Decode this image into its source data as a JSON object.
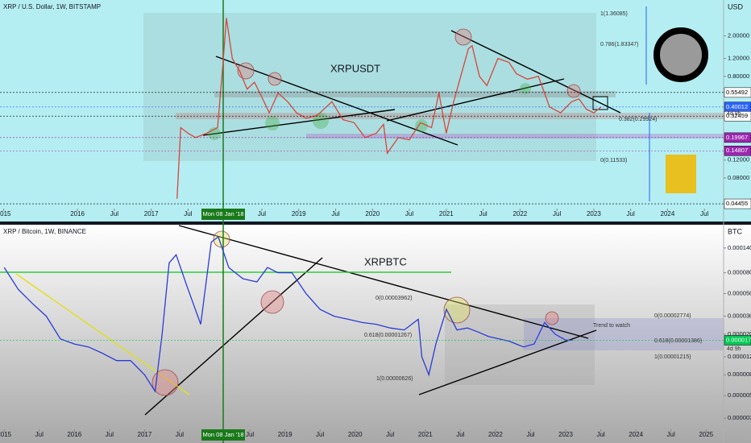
{
  "chart_data": [
    {
      "type": "line",
      "title": "XRP / U.S. Dollar, 1W, BITSTAMP",
      "symbol": "XRPUSDT",
      "unit": "USD",
      "log_scale": true,
      "color": "#d9453c",
      "x": [
        2017.35,
        2017.4,
        2017.5,
        2017.6,
        2017.75,
        2017.9,
        2017.97,
        2018.02,
        2018.1,
        2018.2,
        2018.3,
        2018.4,
        2018.5,
        2018.6,
        2018.72,
        2018.85,
        2018.97,
        2019.1,
        2019.25,
        2019.45,
        2019.6,
        2019.75,
        2019.9,
        2020.05,
        2020.15,
        2020.2,
        2020.35,
        2020.5,
        2020.65,
        2020.8,
        2020.9,
        2021.0,
        2021.1,
        2021.3,
        2021.35,
        2021.45,
        2021.55,
        2021.7,
        2021.85,
        2021.95,
        2022.1,
        2022.25,
        2022.4,
        2022.55,
        2022.7,
        2022.8,
        2022.9,
        2023.0,
        2023.1
      ],
      "values": [
        0.05,
        0.25,
        0.22,
        0.2,
        0.22,
        0.25,
        1.0,
        3.0,
        1.2,
        0.9,
        0.6,
        0.7,
        0.5,
        0.35,
        0.55,
        0.45,
        0.35,
        0.31,
        0.33,
        0.45,
        0.3,
        0.28,
        0.2,
        0.22,
        0.27,
        0.14,
        0.2,
        0.19,
        0.28,
        0.25,
        0.55,
        0.22,
        0.45,
        1.5,
        1.6,
        0.8,
        0.65,
        1.2,
        1.1,
        0.85,
        0.75,
        0.8,
        0.4,
        0.35,
        0.45,
        0.48,
        0.38,
        0.35,
        0.4
      ],
      "xlim": [
        2014.95,
        2024.76
      ],
      "xticks": [
        2015,
        2016,
        {
          "value": 2016.5,
          "label": "Jul"
        },
        2017,
        {
          "value": 2017.5,
          "label": "Jul"
        },
        {
          "value": 2018.5,
          "label": "Jul"
        },
        2019,
        {
          "value": 2019.5,
          "label": "Jul"
        },
        2020,
        {
          "value": 2020.5,
          "label": "Jul"
        },
        2021,
        {
          "value": 2021.5,
          "label": "Jul"
        },
        2022,
        {
          "value": 2022.5,
          "label": "Jul"
        },
        2023,
        {
          "value": 2023.5,
          "label": "Jul"
        },
        2024,
        {
          "value": 2024.5,
          "label": "Jul"
        }
      ],
      "ylim": [
        0.043,
        3.9
      ],
      "yticks": [
        {
          "value": 2,
          "label": "2.00000"
        },
        {
          "value": 1.2,
          "label": "1.20000"
        },
        {
          "value": 0.8,
          "label": "0.80000"
        },
        {
          "value": 0.12,
          "label": "0.12000"
        },
        {
          "value": 0.08,
          "label": "0.08000"
        }
      ],
      "price_lines": [
        {
          "value": 0.55492,
          "color": "#ffffff"
        },
        {
          "value": 0.40012,
          "color": "#2962ff"
        },
        {
          "value": 0.32459,
          "color": "#ffffff"
        },
        {
          "value": 0.19967,
          "color": "#9c27b0"
        },
        {
          "value": 0.14807,
          "color": "#9c27b0"
        },
        {
          "value": 0.04455,
          "color": "#ffffff"
        }
      ],
      "annotations": [
        "1(1.36085)",
        "0.786(1.83347)",
        "0.382(0.29924)",
        "0(0.11533)",
        "4d 9h"
      ],
      "date_marker": "Mon 08 Jan '18"
    },
    {
      "type": "line",
      "title": "XRP / Bitcoin, 1W, BINANCE",
      "symbol": "XRPBTC",
      "unit": "BTC",
      "log_scale": true,
      "color": "#2b3bd6",
      "x": [
        2015.0,
        2015.2,
        2015.4,
        2015.6,
        2015.8,
        2016.0,
        2016.2,
        2016.4,
        2016.6,
        2016.8,
        2017.0,
        2017.15,
        2017.25,
        2017.35,
        2017.45,
        2017.6,
        2017.8,
        2017.95,
        2018.05,
        2018.2,
        2018.4,
        2018.6,
        2018.75,
        2018.9,
        2019.1,
        2019.3,
        2019.5,
        2019.7,
        2019.9,
        2020.1,
        2020.3,
        2020.5,
        2020.7,
        2020.9,
        2020.95,
        2021.05,
        2021.15,
        2021.3,
        2021.45,
        2021.6,
        2021.75,
        2021.9,
        2022.05,
        2022.2,
        2022.4,
        2022.55,
        2022.7,
        2022.85,
        2023.0,
        2023.1
      ],
      "values": [
        9e-05,
        5.5e-05,
        4e-05,
        3e-05,
        1.8e-05,
        1.6e-05,
        1.5e-05,
        1.3e-05,
        1.1e-05,
        1.1e-05,
        8e-06,
        5.5e-06,
        2e-05,
        0.0001,
        0.00012,
        6e-05,
        2.5e-05,
        0.00016,
        0.00018,
        9e-05,
        7e-05,
        6.5e-05,
        9e-05,
        8e-05,
        8e-05,
        5e-05,
        3.5e-05,
        3e-05,
        2.8e-05,
        2.6e-05,
        2.5e-05,
        2.3e-05,
        2.2e-05,
        2.8e-05,
        1.2e-05,
        8e-06,
        1.6e-05,
        3.5e-05,
        2.2e-05,
        2.3e-05,
        2.1e-05,
        1.9e-05,
        1.8e-05,
        1.7e-05,
        1.5e-05,
        1.6e-05,
        2.6e-05,
        2e-05,
        1.75e-05,
        1.742e-05
      ],
      "xlim": [
        2014.94,
        2025.25
      ],
      "xticks": [
        2015,
        {
          "value": 2015.5,
          "label": "Jul"
        },
        2016,
        {
          "value": 2016.5,
          "label": "Jul"
        },
        2017,
        {
          "value": 2017.5,
          "label": "Jul"
        },
        {
          "value": 2018.5,
          "label": "Jul"
        },
        2019,
        {
          "value": 2019.5,
          "label": "Jul"
        },
        2020,
        {
          "value": 2020.5,
          "label": "Jul"
        },
        2021,
        {
          "value": 2021.5,
          "label": "Jul"
        },
        2022,
        {
          "value": 2022.5,
          "label": "Jul"
        },
        2023,
        {
          "value": 2023.5,
          "label": "Jul"
        },
        2024,
        {
          "value": 2024.5,
          "label": "Jul"
        },
        2025
      ],
      "ylim": [
        2.7e-06,
        0.000224
      ],
      "yticks": [
        {
          "value": 0.00014,
          "label": "0.00014000"
        },
        {
          "value": 8e-05,
          "label": "0.00008000"
        },
        {
          "value": 5e-05,
          "label": "0.00005000"
        },
        {
          "value": 3e-05,
          "label": "0.00003000"
        },
        {
          "value": 2e-05,
          "label": "0.00002000"
        },
        {
          "value": 1.2e-05,
          "label": "0.00001200"
        },
        {
          "value": 8e-06,
          "label": "0.00000800"
        },
        {
          "value": 5e-06,
          "label": "0.00000500"
        },
        {
          "value": 3e-06,
          "label": "0.00000300"
        }
      ],
      "price_lines": [
        {
          "value": 1.742e-05,
          "color": "#00c853"
        }
      ],
      "annotations": [
        "0(0.00003962)",
        "0.618(0.00001267)",
        "1(0.00000626)",
        "0(0.00002774)",
        "0.618(0.00001386)",
        "1(0.00001215)",
        "Trend to watch",
        "4d 9h"
      ],
      "date_marker": "Mon 08 Jan '18"
    }
  ]
}
